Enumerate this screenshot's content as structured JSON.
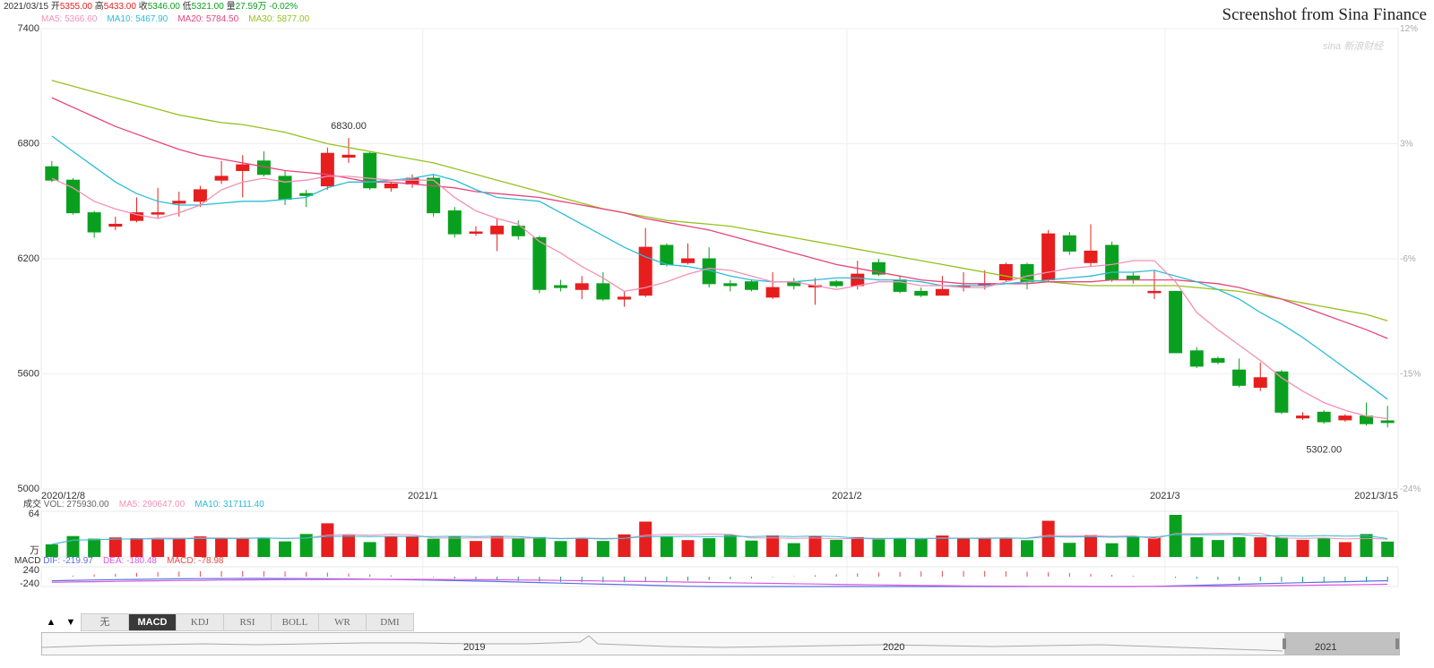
{
  "header": {
    "date": "2021/03/15",
    "open_label": "开",
    "open": "5355.00",
    "high_label": "高",
    "high": "5433.00",
    "close_label": "收",
    "close": "5346.00",
    "low_label": "低",
    "low": "5321.00",
    "vol_label": "量",
    "vol": "27.59万",
    "change": "-0.02%",
    "ma5": "MA5: 5366.60",
    "ma10": "MA10: 5467.90",
    "ma20": "MA20: 5784.50",
    "ma30": "MA30: 5877.00"
  },
  "credit": "Screenshot from Sina Finance",
  "watermark": "sina 新浪财经",
  "colors": {
    "up": "#e61e1e",
    "down": "#0aa01f",
    "ma5": "#f390b6",
    "ma10": "#2bbcd6",
    "ma20": "#e8457a",
    "ma30": "#96c11f",
    "dif": "#5b6ee1",
    "dea": "#d65ae0"
  },
  "chart_data": {
    "type": "candlestick",
    "price_axis": {
      "ticks": [
        7400,
        6800,
        6200,
        5600,
        5000
      ],
      "ylim": [
        5000,
        7400
      ]
    },
    "pct_axis": {
      "ticks": [
        "12%",
        "3%",
        "-6%",
        "-15%",
        "-24%"
      ]
    },
    "x_labels": [
      {
        "label": "2020/12/8",
        "index": 0
      },
      {
        "label": "2021/1",
        "index": 18
      },
      {
        "label": "2021/2",
        "index": 38
      },
      {
        "label": "2021/3",
        "index": 53
      },
      {
        "label": "2021/3/15",
        "index": 63
      }
    ],
    "annotations": [
      {
        "text": "6830.00",
        "index": 14,
        "value": 6830
      },
      {
        "text": "5302.00",
        "index": 60,
        "value": 5302
      }
    ],
    "candles": [
      [
        6680,
        6610,
        6710,
        6600
      ],
      [
        6610,
        6440,
        6620,
        6430
      ],
      [
        6440,
        6340,
        6450,
        6310
      ],
      [
        6370,
        6380,
        6420,
        6350
      ],
      [
        6400,
        6440,
        6520,
        6390
      ],
      [
        6440,
        6440,
        6570,
        6410
      ],
      [
        6490,
        6500,
        6550,
        6420
      ],
      [
        6500,
        6560,
        6580,
        6470
      ],
      [
        6610,
        6630,
        6710,
        6590
      ],
      [
        6660,
        6690,
        6740,
        6520
      ],
      [
        6710,
        6640,
        6760,
        6630
      ],
      [
        6630,
        6510,
        6660,
        6480
      ],
      [
        6540,
        6530,
        6560,
        6470
      ],
      [
        6580,
        6750,
        6780,
        6560
      ],
      [
        6730,
        6740,
        6830,
        6700
      ],
      [
        6750,
        6570,
        6760,
        6560
      ],
      [
        6570,
        6590,
        6600,
        6550
      ],
      [
        6590,
        6620,
        6640,
        6570
      ],
      [
        6620,
        6440,
        6640,
        6420
      ],
      [
        6450,
        6330,
        6470,
        6310
      ],
      [
        6340,
        6340,
        6370,
        6320
      ],
      [
        6330,
        6370,
        6410,
        6240
      ],
      [
        6370,
        6320,
        6400,
        6300
      ],
      [
        6310,
        6040,
        6320,
        6020
      ],
      [
        6060,
        6050,
        6090,
        6030
      ],
      [
        6040,
        6070,
        6110,
        5990
      ],
      [
        6070,
        5990,
        6130,
        5980
      ],
      [
        5990,
        6000,
        6030,
        5950
      ],
      [
        6010,
        6260,
        6360,
        6000
      ],
      [
        6270,
        6170,
        6280,
        6160
      ],
      [
        6180,
        6200,
        6280,
        6170
      ],
      [
        6200,
        6070,
        6260,
        6050
      ],
      [
        6070,
        6060,
        6090,
        6030
      ],
      [
        6080,
        6040,
        6090,
        6030
      ],
      [
        6000,
        6050,
        6130,
        5990
      ],
      [
        6080,
        6060,
        6100,
        6040
      ],
      [
        6060,
        6060,
        6100,
        5960
      ],
      [
        6080,
        6060,
        6090,
        6050
      ],
      [
        6060,
        6120,
        6190,
        6040
      ],
      [
        6180,
        6120,
        6200,
        6110
      ],
      [
        6090,
        6030,
        6110,
        6020
      ],
      [
        6030,
        6010,
        6050,
        6000
      ],
      [
        6010,
        6040,
        6110,
        6010
      ],
      [
        6060,
        6060,
        6130,
        6030
      ],
      [
        6070,
        6070,
        6140,
        6040
      ],
      [
        6090,
        6170,
        6180,
        6080
      ],
      [
        6170,
        6080,
        6180,
        6040
      ],
      [
        6090,
        6330,
        6350,
        6080
      ],
      [
        6320,
        6240,
        6340,
        6220
      ],
      [
        6180,
        6240,
        6380,
        6160
      ],
      [
        6270,
        6090,
        6290,
        6080
      ],
      [
        6110,
        6090,
        6130,
        6070
      ],
      [
        6030,
        6030,
        6140,
        5990
      ],
      [
        6030,
        5710,
        6030,
        5710
      ],
      [
        5720,
        5640,
        5740,
        5630
      ],
      [
        5680,
        5660,
        5690,
        5650
      ],
      [
        5620,
        5540,
        5680,
        5530
      ],
      [
        5530,
        5580,
        5660,
        5510
      ],
      [
        5610,
        5400,
        5620,
        5390
      ],
      [
        5370,
        5380,
        5400,
        5360
      ],
      [
        5400,
        5350,
        5410,
        5340
      ],
      [
        5360,
        5380,
        5390,
        5350
      ],
      [
        5380,
        5340,
        5450,
        5330
      ],
      [
        5355,
        5346,
        5433,
        5321
      ]
    ],
    "ma5": [
      6620,
      6570,
      6500,
      6460,
      6430,
      6410,
      6440,
      6480,
      6560,
      6600,
      6620,
      6600,
      6610,
      6630,
      6630,
      6620,
      6610,
      6610,
      6610,
      6520,
      6450,
      6410,
      6380,
      6290,
      6230,
      6160,
      6100,
      6030,
      6050,
      6080,
      6120,
      6150,
      6140,
      6110,
      6080,
      6080,
      6060,
      6040,
      6060,
      6080,
      6080,
      6060,
      6060,
      6050,
      6050,
      6080,
      6110,
      6130,
      6150,
      6160,
      6170,
      6190,
      6190,
      6080,
      5920,
      5830,
      5750,
      5670,
      5580,
      5510,
      5450,
      5410,
      5380,
      5366.6
    ],
    "ma10": [
      6840,
      6760,
      6680,
      6600,
      6540,
      6500,
      6480,
      6480,
      6490,
      6500,
      6500,
      6510,
      6520,
      6570,
      6600,
      6600,
      6610,
      6620,
      6640,
      6610,
      6560,
      6520,
      6510,
      6500,
      6440,
      6380,
      6320,
      6260,
      6210,
      6170,
      6160,
      6140,
      6110,
      6090,
      6080,
      6080,
      6090,
      6100,
      6100,
      6090,
      6090,
      6080,
      6060,
      6060,
      6060,
      6070,
      6080,
      6090,
      6100,
      6110,
      6130,
      6130,
      6140,
      6110,
      6080,
      6040,
      5990,
      5920,
      5860,
      5790,
      5710,
      5630,
      5550,
      5467.9
    ],
    "ma20": [
      7040,
      6990,
      6940,
      6890,
      6850,
      6810,
      6770,
      6740,
      6720,
      6700,
      6680,
      6660,
      6650,
      6640,
      6620,
      6600,
      6600,
      6590,
      6580,
      6570,
      6550,
      6540,
      6530,
      6520,
      6500,
      6480,
      6460,
      6440,
      6410,
      6390,
      6370,
      6350,
      6320,
      6290,
      6260,
      6230,
      6200,
      6170,
      6150,
      6130,
      6110,
      6090,
      6080,
      6070,
      6070,
      6070,
      6070,
      6080,
      6080,
      6080,
      6090,
      6090,
      6090,
      6090,
      6080,
      6070,
      6050,
      6020,
      5990,
      5950,
      5910,
      5870,
      5830,
      5784.5
    ],
    "ma30": [
      7130,
      7100,
      7070,
      7040,
      7010,
      6980,
      6950,
      6930,
      6910,
      6900,
      6880,
      6860,
      6830,
      6800,
      6780,
      6760,
      6740,
      6720,
      6700,
      6670,
      6640,
      6610,
      6580,
      6550,
      6520,
      6490,
      6460,
      6440,
      6420,
      6400,
      6390,
      6380,
      6370,
      6350,
      6330,
      6310,
      6290,
      6270,
      6250,
      6230,
      6210,
      6190,
      6170,
      6150,
      6130,
      6110,
      6090,
      6080,
      6070,
      6060,
      6060,
      6060,
      6060,
      6060,
      6050,
      6040,
      6030,
      6010,
      5990,
      5970,
      5950,
      5930,
      5910,
      5877
    ]
  },
  "volume_panel": {
    "label": "成交",
    "vol": "VOL: 275930.00",
    "ma5": "MA5: 290647.00",
    "ma10": "MA10: 317111.40",
    "max_tick": "64",
    "unit": "万"
  },
  "macd_panel": {
    "label": "MACD",
    "dif": "DIF: -219.97",
    "dea": "DEA: -180.48",
    "macd": "MACD: -78.98",
    "ticks": [
      "240",
      "-240"
    ]
  },
  "tabs": [
    "无",
    "MACD",
    "KDJ",
    "RSI",
    "BOLL",
    "WR",
    "DMI"
  ],
  "active_tab": "MACD",
  "navigator": {
    "labels": [
      "2019",
      "2020",
      "2021"
    ]
  }
}
